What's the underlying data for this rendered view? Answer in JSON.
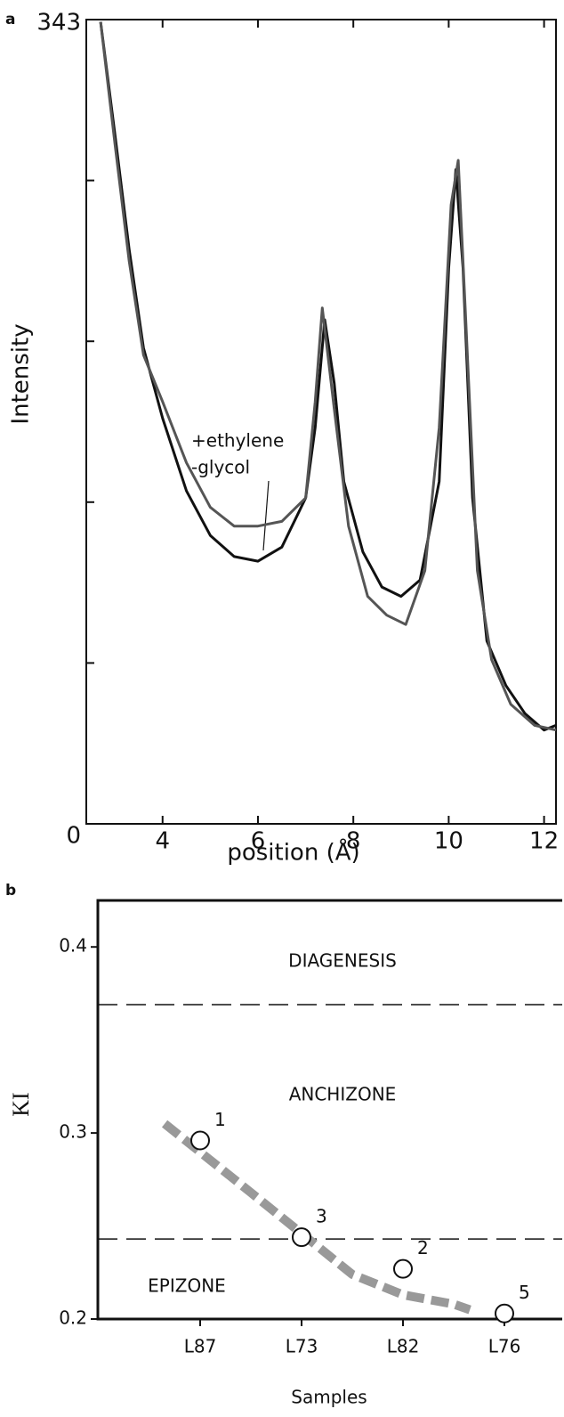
{
  "chart_data": [
    {
      "type": "line",
      "panel_label": "a",
      "xlabel": "position (Å)",
      "ylabel": "Intensity",
      "annotation": [
        "+ethylene",
        "-glycol"
      ],
      "xlim": [
        2.4,
        12.25
      ],
      "xticks": [
        4,
        6,
        8,
        10,
        12
      ],
      "ylim": [
        0,
        343
      ],
      "yticks": [
        0,
        343
      ],
      "yticks_unlabeled": [
        68.6,
        137.2,
        205.8,
        274.4
      ],
      "series": [
        {
          "color": "#111111",
          "x": [
            2.7,
            3.0,
            3.3,
            3.6,
            4.0,
            4.5,
            5.0,
            5.5,
            6.0,
            6.5,
            7.0,
            7.2,
            7.4,
            7.6,
            7.8,
            8.2,
            8.6,
            9.0,
            9.4,
            9.8,
            10.0,
            10.15,
            10.3,
            10.5,
            10.8,
            11.2,
            11.6,
            12.0,
            12.25
          ],
          "values": [
            342,
            294,
            245,
            203,
            173,
            142,
            123,
            114,
            112,
            118,
            139,
            169,
            215,
            188,
            146,
            116,
            101,
            97,
            104,
            146,
            237,
            279,
            237,
            139,
            78,
            59,
            47,
            40,
            42
          ]
        },
        {
          "color": "#555555",
          "x": [
            2.7,
            3.0,
            3.3,
            3.6,
            4.0,
            4.5,
            5.0,
            5.5,
            6.0,
            6.5,
            7.0,
            7.2,
            7.35,
            7.6,
            7.9,
            8.3,
            8.7,
            9.1,
            9.5,
            9.8,
            10.05,
            10.2,
            10.35,
            10.6,
            10.9,
            11.3,
            11.8,
            12.25
          ],
          "values": [
            342,
            290,
            240,
            200,
            180,
            154,
            135,
            127,
            127,
            129,
            139,
            180,
            220,
            177,
            127,
            97,
            89,
            85,
            108,
            169,
            264,
            283,
            218,
            108,
            70,
            51,
            42,
            40
          ]
        }
      ]
    },
    {
      "type": "scatter",
      "panel_label": "b",
      "xlabel": "Samples",
      "ylabel": "KI",
      "categories": [
        "L87",
        "L73",
        "L82",
        "L76"
      ],
      "values": [
        0.296,
        0.244,
        0.227,
        0.203
      ],
      "point_labels": [
        "1",
        "3",
        "2",
        "5"
      ],
      "ylim": [
        0.2,
        0.425
      ],
      "yticks": [
        0.2,
        0.3,
        0.4
      ],
      "boundaries": [
        0.369,
        0.243
      ],
      "zones": [
        "DIAGENESIS",
        "ANCHIZONE",
        "EPIZONE"
      ],
      "trend": {
        "color": "#999999",
        "x": [
          -0.35,
          0.5,
          1,
          1.5,
          2,
          2.5,
          2.66
        ],
        "values": [
          0.305,
          0.268,
          0.246,
          0.224,
          0.213,
          0.208,
          0.205
        ]
      }
    }
  ]
}
